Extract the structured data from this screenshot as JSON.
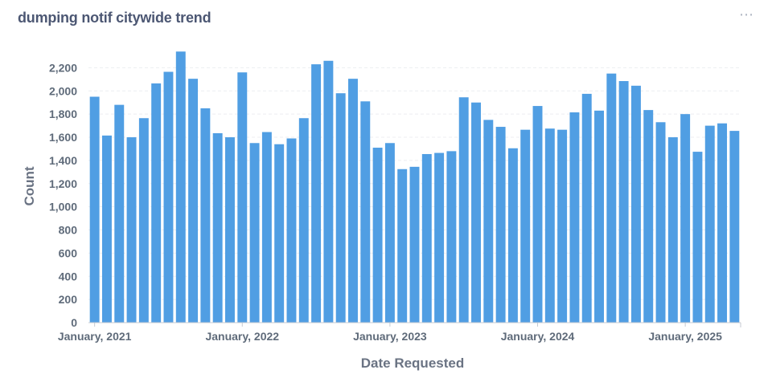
{
  "card": {
    "title": "dumping notif citywide trend",
    "menu_icon": "ellipsis-icon"
  },
  "chart_data": {
    "type": "bar",
    "title": "dumping notif citywide trend",
    "xlabel": "Date Requested",
    "ylabel": "Count",
    "ylim": [
      0,
      2300
    ],
    "yticks": [
      0,
      200,
      400,
      600,
      800,
      1000,
      1200,
      1400,
      1600,
      1800,
      2000,
      2200
    ],
    "ytick_labels": [
      "0",
      "200",
      "400",
      "600",
      "800",
      "1,000",
      "1,200",
      "1,400",
      "1,600",
      "1,800",
      "2,000",
      "2,200"
    ],
    "xtick_labels": [
      {
        "label": "January, 2021",
        "index": 0
      },
      {
        "label": "January, 2022",
        "index": 12
      },
      {
        "label": "January, 2023",
        "index": 24
      },
      {
        "label": "January, 2024",
        "index": 36
      },
      {
        "label": "January, 2025",
        "index": 48
      }
    ],
    "grid": true,
    "bar_color": "#509ee3",
    "categories": [
      "2021-01",
      "2021-02",
      "2021-03",
      "2021-04",
      "2021-05",
      "2021-06",
      "2021-07",
      "2021-08",
      "2021-09",
      "2021-10",
      "2021-11",
      "2021-12",
      "2022-01",
      "2022-02",
      "2022-03",
      "2022-04",
      "2022-05",
      "2022-06",
      "2022-07",
      "2022-08",
      "2022-09",
      "2022-10",
      "2022-11",
      "2022-12",
      "2023-01",
      "2023-02",
      "2023-03",
      "2023-04",
      "2023-05",
      "2023-06",
      "2023-07",
      "2023-08",
      "2023-09",
      "2023-10",
      "2023-11",
      "2023-12",
      "2024-01",
      "2024-02",
      "2024-03",
      "2024-04",
      "2024-05",
      "2024-06",
      "2024-07",
      "2024-08",
      "2024-09",
      "2024-10",
      "2024-11",
      "2024-12",
      "2025-01",
      "2025-02",
      "2025-03",
      "2025-04",
      "2025-05"
    ],
    "values": [
      1950,
      1615,
      1880,
      1600,
      1765,
      2065,
      2165,
      2340,
      2105,
      1850,
      1635,
      1600,
      2160,
      1550,
      1645,
      1540,
      1590,
      1765,
      2230,
      2260,
      1980,
      2105,
      1910,
      1510,
      1550,
      1325,
      1345,
      1455,
      1465,
      1480,
      1945,
      1900,
      1750,
      1690,
      1505,
      1665,
      1870,
      1675,
      1665,
      1815,
      1975,
      1830,
      2150,
      2085,
      2045,
      1835,
      1730,
      1600,
      1800,
      1475,
      1700,
      1720,
      1655
    ]
  }
}
